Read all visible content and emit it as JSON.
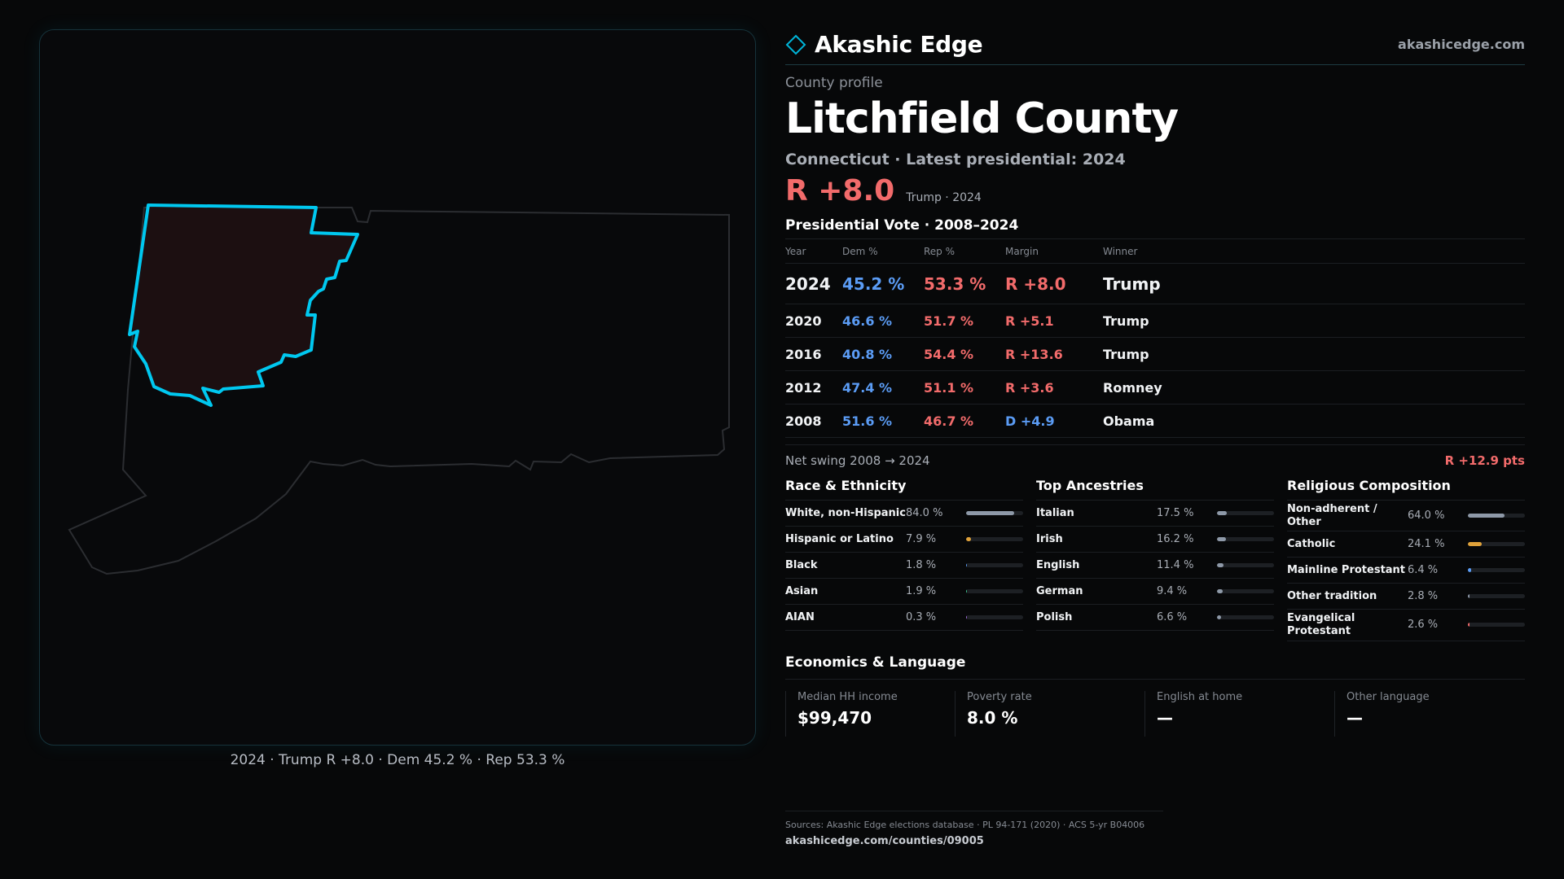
{
  "brand": {
    "name": "Akashic Edge",
    "url": "akashicedge.com",
    "logo_icon": "diamond-logo-icon",
    "accent": "#00b4d8"
  },
  "map": {
    "caption": "2024 · Trump R +8.0 · Dem 45.2 % · Rep 53.3 %",
    "highlight_color": "#00c8f0",
    "highlight_fill": "#1c0f11",
    "state_outline_color": "#2b2d31"
  },
  "profile": {
    "eyebrow": "County profile",
    "title": "Litchfield County",
    "subtitle": "Connecticut · Latest presidential: 2024",
    "headline_margin": "R +8.0",
    "headline_note": "Trump · 2024"
  },
  "votes": {
    "heading": "Presidential Vote · 2008–2024",
    "columns": [
      "Year",
      "Dem %",
      "Rep %",
      "Margin",
      "Winner"
    ],
    "rows": [
      {
        "year": "2024",
        "dem": "45.2 %",
        "rep": "53.3 %",
        "margin": "R +8.0",
        "party": "r",
        "winner": "Trump"
      },
      {
        "year": "2020",
        "dem": "46.6 %",
        "rep": "51.7 %",
        "margin": "R +5.1",
        "party": "r",
        "winner": "Trump"
      },
      {
        "year": "2016",
        "dem": "40.8 %",
        "rep": "54.4 %",
        "margin": "R +13.6",
        "party": "r",
        "winner": "Trump"
      },
      {
        "year": "2012",
        "dem": "47.4 %",
        "rep": "51.1 %",
        "margin": "R +3.6",
        "party": "r",
        "winner": "Romney"
      },
      {
        "year": "2008",
        "dem": "51.6 %",
        "rep": "46.7 %",
        "margin": "D +4.9",
        "party": "d",
        "winner": "Obama"
      }
    ],
    "swing_label": "Net swing 2008 → 2024",
    "swing_value": "R +12.9 pts"
  },
  "demographics": [
    {
      "title": "Race & Ethnicity",
      "rows": [
        {
          "name": "White, non-Hispanic",
          "value": "84.0 %",
          "fraction": 0.84,
          "color": "#8e99a8"
        },
        {
          "name": "Hispanic or Latino",
          "value": "7.9 %",
          "fraction": 0.079,
          "color": "#e0a23a"
        },
        {
          "name": "Black",
          "value": "1.8 %",
          "fraction": 0.018,
          "color": "#5b9cf5"
        },
        {
          "name": "Asian",
          "value": "1.9 %",
          "fraction": 0.019,
          "color": "#3cc48f"
        },
        {
          "name": "AIAN",
          "value": "0.3 %",
          "fraction": 0.003,
          "color": "#a06bd8"
        }
      ]
    },
    {
      "title": "Top Ancestries",
      "rows": [
        {
          "name": "Italian",
          "value": "17.5 %",
          "fraction": 0.175,
          "color": "#8e99a8"
        },
        {
          "name": "Irish",
          "value": "16.2 %",
          "fraction": 0.162,
          "color": "#8e99a8"
        },
        {
          "name": "English",
          "value": "11.4 %",
          "fraction": 0.114,
          "color": "#8e99a8"
        },
        {
          "name": "German",
          "value": "9.4 %",
          "fraction": 0.094,
          "color": "#8e99a8"
        },
        {
          "name": "Polish",
          "value": "6.6 %",
          "fraction": 0.066,
          "color": "#8e99a8"
        }
      ]
    },
    {
      "title": "Religious Composition",
      "rows": [
        {
          "name": "Non-adherent / Other",
          "value": "64.0 %",
          "fraction": 0.64,
          "color": "#8e99a8"
        },
        {
          "name": "Catholic",
          "value": "24.1 %",
          "fraction": 0.241,
          "color": "#e0a23a"
        },
        {
          "name": "Mainline Protestant",
          "value": "6.4 %",
          "fraction": 0.064,
          "color": "#5b9cf5"
        },
        {
          "name": "Other tradition",
          "value": "2.8 %",
          "fraction": 0.028,
          "color": "#8e99a8"
        },
        {
          "name": "Evangelical Protestant",
          "value": "2.6 %",
          "fraction": 0.026,
          "color": "#f26b6b"
        }
      ]
    }
  ],
  "economics": {
    "heading": "Economics & Language",
    "cells": [
      {
        "label": "Median HH income",
        "value": "$99,470"
      },
      {
        "label": "Poverty rate",
        "value": "8.0 %"
      },
      {
        "label": "English at home",
        "value": "—"
      },
      {
        "label": "Other language",
        "value": "—"
      }
    ]
  },
  "sources": {
    "text": "Sources: Akashic Edge elections database · PL 94-171 (2020) · ACS 5-yr B04006",
    "url": "akashicedge.com/counties/09005"
  }
}
